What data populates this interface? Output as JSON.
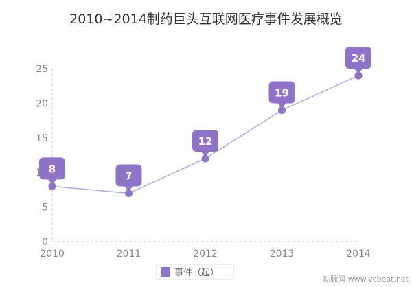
{
  "chart_data": {
    "type": "line",
    "title": "2010~2014制药巨头互联网医疗事件发展概览",
    "x": [
      "2010",
      "2011",
      "2012",
      "2013",
      "2014"
    ],
    "series": [
      {
        "name": "事件（起）",
        "values": [
          8,
          7,
          12,
          19,
          24
        ]
      }
    ],
    "ylim": [
      0,
      25
    ],
    "yticks": [
      0,
      5,
      10,
      15,
      20,
      25
    ],
    "grid": false,
    "legend": "bottom",
    "colors": {
      "line": "#b7a7de",
      "point": "#8f73c9",
      "bubble": "#8f73c9",
      "axis": "#cccccc"
    }
  },
  "watermark": "动脉网 www.vcbeat.net"
}
